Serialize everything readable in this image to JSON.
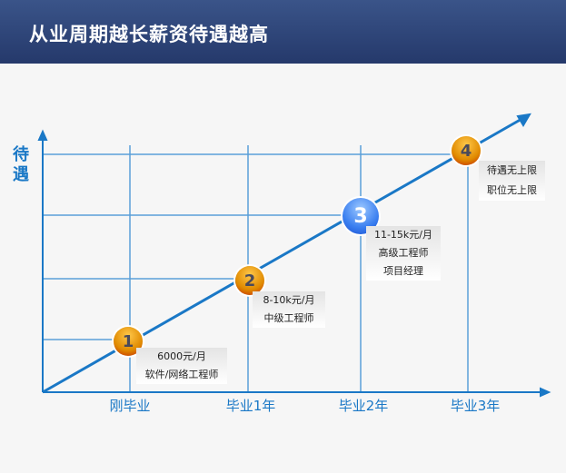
{
  "title": "从业周期越长薪资待遇越高",
  "y_axis_label": "待遇",
  "x_labels": [
    "刚毕业",
    "毕业1年",
    "毕业2年",
    "毕业3年"
  ],
  "stages": [
    {
      "number": "1",
      "lines": [
        "6000元/月",
        "软件/网络工程师"
      ],
      "color": "orange"
    },
    {
      "number": "2",
      "lines": [
        "8-10k元/月",
        "中级工程师"
      ],
      "color": "orange"
    },
    {
      "number": "3",
      "lines": [
        "11-15k元/月",
        "高级工程师",
        "项目经理"
      ],
      "color": "blue"
    },
    {
      "number": "4",
      "lines": [
        "待遇无上限",
        "职位无上限"
      ],
      "color": "orange"
    }
  ],
  "colors": {
    "header": "#2e4679",
    "line": "#1a78c6",
    "grid": "#5a9fd8"
  }
}
